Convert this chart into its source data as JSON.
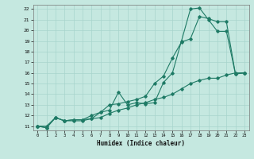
{
  "title": "",
  "xlabel": "Humidex (Indice chaleur)",
  "bg_color": "#c5e8e0",
  "line_color": "#1e7a65",
  "grid_color": "#a8d4cc",
  "xlim": [
    -0.5,
    23.5
  ],
  "ylim": [
    10.6,
    22.4
  ],
  "xticks": [
    0,
    1,
    2,
    3,
    4,
    5,
    6,
    7,
    8,
    9,
    10,
    11,
    12,
    13,
    14,
    15,
    16,
    17,
    18,
    19,
    20,
    21,
    22,
    23
  ],
  "yticks": [
    11,
    12,
    13,
    14,
    15,
    16,
    17,
    18,
    19,
    20,
    21,
    22
  ],
  "line1_x": [
    0,
    1,
    2,
    3,
    4,
    5,
    6,
    7,
    8,
    9,
    10,
    11,
    12,
    13,
    14,
    15,
    16,
    17,
    18,
    19,
    20,
    21,
    22,
    23
  ],
  "line1_y": [
    11.0,
    10.85,
    11.8,
    11.5,
    11.6,
    11.6,
    11.7,
    12.3,
    12.5,
    14.2,
    13.0,
    13.2,
    13.1,
    13.2,
    15.1,
    16.0,
    19.0,
    22.0,
    22.1,
    21.0,
    19.9,
    19.9,
    15.9,
    16.0
  ],
  "line2_x": [
    0,
    1,
    2,
    3,
    4,
    5,
    6,
    7,
    8,
    9,
    10,
    11,
    12,
    13,
    14,
    15,
    16,
    17,
    18,
    19,
    20,
    21,
    22,
    23
  ],
  "line2_y": [
    11.0,
    10.85,
    11.8,
    11.5,
    11.6,
    11.6,
    12.0,
    12.3,
    13.0,
    13.1,
    13.3,
    13.5,
    13.8,
    15.0,
    15.7,
    17.4,
    18.9,
    19.2,
    21.3,
    21.1,
    20.8,
    20.8,
    15.9,
    16.0
  ],
  "line3_x": [
    0,
    1,
    2,
    3,
    4,
    5,
    6,
    7,
    8,
    9,
    10,
    11,
    12,
    13,
    14,
    15,
    16,
    17,
    18,
    19,
    20,
    21,
    22,
    23
  ],
  "line3_y": [
    11.0,
    11.0,
    11.8,
    11.5,
    11.5,
    11.5,
    11.7,
    11.8,
    12.2,
    12.5,
    12.7,
    13.0,
    13.2,
    13.5,
    13.7,
    14.0,
    14.5,
    15.0,
    15.3,
    15.5,
    15.5,
    15.8,
    16.0,
    16.0
  ]
}
